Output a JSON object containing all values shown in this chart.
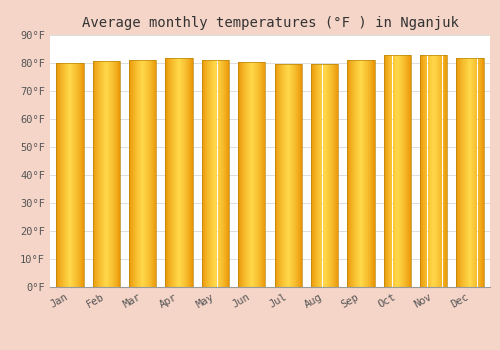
{
  "title": "Average monthly temperatures (°F ) in Nganjuk",
  "months": [
    "Jan",
    "Feb",
    "Mar",
    "Apr",
    "May",
    "Jun",
    "Jul",
    "Aug",
    "Sep",
    "Oct",
    "Nov",
    "Dec"
  ],
  "values": [
    80.1,
    80.8,
    81.0,
    81.7,
    81.1,
    80.3,
    79.7,
    79.8,
    81.0,
    82.8,
    82.8,
    81.8
  ],
  "ylim": [
    0,
    90
  ],
  "yticks": [
    0,
    10,
    20,
    30,
    40,
    50,
    60,
    70,
    80,
    90
  ],
  "bar_color_center": "#FFD84A",
  "bar_color_edge": "#E89000",
  "bar_border_color": "#B8860B",
  "background_color": "#F5D5C8",
  "plot_bg_color": "#FFFFFF",
  "grid_color": "#DDDDDD",
  "title_fontsize": 10,
  "tick_fontsize": 7.5,
  "font_family": "monospace"
}
